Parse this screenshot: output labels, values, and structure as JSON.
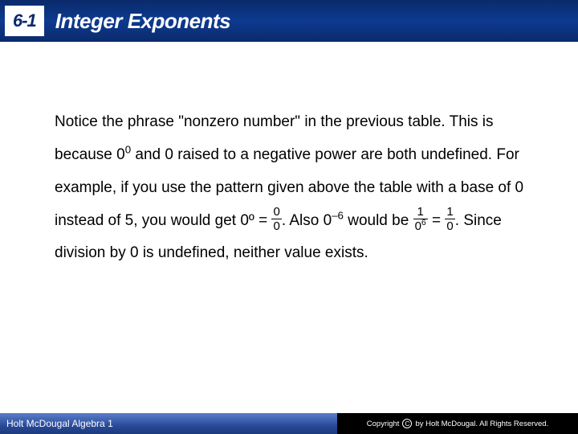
{
  "header": {
    "section_number": "6-1",
    "section_title": "Integer Exponents",
    "bg_gradient": "#0a2a6b",
    "title_color": "#ffffff",
    "box_bg": "#ffffff",
    "box_text_color": "#0a2a6b"
  },
  "body": {
    "font_size_pt": 14,
    "line_height": 2.15,
    "text_color": "#000000",
    "paragraph_parts": {
      "p1": "Notice the phrase \"nonzero number\" in the previous table. This is because 0",
      "exp0": "0",
      "p2": " and 0 raised to a negative power are both undefined. For example, if you use the pattern given above the table with a base of 0 instead of 5, you would get 0º = ",
      "frac1_num": "0",
      "frac1_den": "0",
      "p3": ". Also 0",
      "exp_neg6": "–6",
      "p4": " would be ",
      "frac2_num": "1",
      "frac2_den": "0",
      "p4b": " = ",
      "exp_6": "6",
      "p5": ". Since division by 0 is undefined, neither value exists.",
      "frac3_num": "1",
      "frac3_den": "0"
    }
  },
  "footer": {
    "left_text": "Holt McDougal Algebra 1",
    "right_text": "by Holt McDougal. All Rights Reserved.",
    "copyright_label": "Copyright",
    "c_symbol": "C",
    "left_bg": "#2a4a9a",
    "right_bg": "#000000",
    "text_color": "#ffffff"
  }
}
